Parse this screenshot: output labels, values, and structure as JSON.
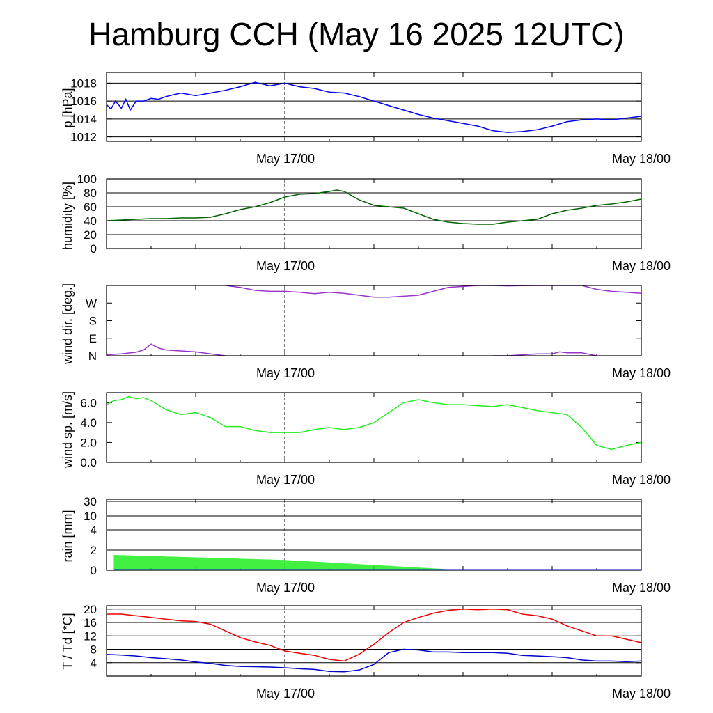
{
  "title": "Hamburg CCH (May 16 2025 12UTC)",
  "chart_data": [
    {
      "type": "line",
      "ylabel": "p [hPa]",
      "ylim": [
        1011.5,
        1019.2
      ],
      "yticks": [
        "1012",
        "1014",
        "1016",
        "1018"
      ],
      "ytick_values": [
        1012,
        1014,
        1016,
        1018
      ],
      "xticks": [
        "May 17/00",
        "May 18/00"
      ],
      "x_range_hours": [
        0,
        36
      ],
      "grid": "horizontal",
      "midnight_marker_hour": 12,
      "series": [
        {
          "color": "#0000ee",
          "x": [
            0,
            0.3,
            0.6,
            1,
            1.3,
            1.6,
            2,
            2.5,
            3,
            3.5,
            4,
            5,
            6,
            7,
            8,
            9,
            10,
            11,
            12,
            13,
            14,
            15,
            16,
            17,
            18,
            19,
            20,
            21,
            22,
            23,
            24,
            25,
            26,
            27,
            28,
            29,
            30,
            31,
            32,
            33,
            34,
            35,
            36
          ],
          "values": [
            1015.6,
            1015.1,
            1016,
            1015.2,
            1016.2,
            1015,
            1016,
            1016,
            1016.3,
            1016.2,
            1016.5,
            1016.9,
            1016.6,
            1016.9,
            1017.2,
            1017.6,
            1018.1,
            1017.7,
            1018,
            1017.6,
            1017.4,
            1017,
            1016.9,
            1016.5,
            1016,
            1015.5,
            1015,
            1014.5,
            1014.1,
            1013.8,
            1013.5,
            1013.2,
            1012.7,
            1012.5,
            1012.6,
            1012.8,
            1013.2,
            1013.7,
            1013.9,
            1014,
            1013.9,
            1014.1,
            1014.3
          ]
        }
      ]
    },
    {
      "type": "line",
      "ylabel": "humidity [%]",
      "ylim": [
        0,
        100
      ],
      "yticks": [
        "0",
        "20",
        "40",
        "60",
        "80",
        "100"
      ],
      "ytick_values": [
        0,
        20,
        40,
        60,
        80,
        100
      ],
      "xticks": [
        "May 17/00",
        "May 18/00"
      ],
      "x_range_hours": [
        0,
        36
      ],
      "grid": "horizontal",
      "midnight_marker_hour": 12,
      "series": [
        {
          "color": "#006400",
          "x": [
            0,
            1,
            2,
            3,
            4,
            5,
            6,
            7,
            8,
            9,
            10,
            11,
            12,
            13,
            14,
            15,
            15.5,
            16,
            17,
            18,
            19,
            20,
            21,
            22,
            23,
            24,
            25,
            26,
            27,
            28,
            29,
            30,
            31,
            32,
            33,
            34,
            35,
            36
          ],
          "values": [
            40,
            41,
            42,
            43,
            43,
            44,
            44,
            45,
            50,
            56,
            60,
            66,
            74,
            78,
            79,
            82,
            84,
            82,
            70,
            62,
            60,
            58,
            50,
            42,
            38,
            36,
            35,
            35,
            38,
            40,
            42,
            50,
            55,
            58,
            62,
            64,
            67,
            71
          ]
        }
      ]
    },
    {
      "type": "line",
      "ylabel": "wind dir. [deg.]",
      "ylim": [
        0,
        360
      ],
      "yticks": [
        "N",
        "E",
        "S",
        "W"
      ],
      "ytick_values": [
        0,
        90,
        180,
        270
      ],
      "xticks": [
        "May 17/00",
        "May 18/00"
      ],
      "x_range_hours": [
        0,
        36
      ],
      "grid": "none",
      "midnight_marker_hour": 12,
      "series": [
        {
          "color": "#9933cc",
          "x": [
            0,
            1,
            2,
            2.5,
            3,
            3.5,
            4,
            5,
            6,
            7,
            8
          ],
          "values": [
            5,
            10,
            18,
            30,
            60,
            40,
            30,
            25,
            20,
            10,
            0
          ]
        },
        {
          "color": "#9933cc",
          "x": [
            8,
            9,
            10,
            11,
            12,
            13,
            14,
            15,
            16,
            17,
            18,
            19,
            20,
            21,
            22,
            23,
            24,
            25,
            26,
            27,
            28,
            29,
            30,
            31,
            32,
            33,
            34,
            35,
            36
          ],
          "values": [
            360,
            350,
            335,
            330,
            330,
            325,
            318,
            325,
            320,
            310,
            300,
            300,
            305,
            310,
            330,
            350,
            355,
            360,
            360,
            358,
            359,
            360,
            360,
            360,
            360,
            340,
            330,
            325,
            320
          ]
        },
        {
          "color": "#9933cc",
          "x": [
            26,
            27,
            28,
            29,
            30,
            30.5,
            31,
            32,
            33
          ],
          "values": [
            0,
            0,
            5,
            10,
            10,
            20,
            15,
            15,
            0
          ]
        }
      ]
    },
    {
      "type": "line",
      "ylabel": "wind sp. [m/s]",
      "ylim": [
        0,
        7
      ],
      "yticks": [
        "0.0",
        "2.0",
        "4.0",
        "6.0"
      ],
      "ytick_values": [
        0,
        2,
        4,
        6
      ],
      "xticks": [
        "May 17/00",
        "May 18/00"
      ],
      "x_range_hours": [
        0,
        36
      ],
      "grid": "none",
      "midnight_marker_hour": 12,
      "series": [
        {
          "color": "#22ee22",
          "x": [
            0,
            0.5,
            1,
            1.5,
            2,
            2.5,
            3,
            4,
            5,
            6,
            7,
            8,
            9,
            10,
            11,
            12,
            13,
            14,
            15,
            16,
            17,
            18,
            19,
            20,
            21,
            22,
            23,
            24,
            25,
            26,
            27,
            28,
            29,
            30,
            31,
            32,
            33,
            34,
            35,
            36
          ],
          "values": [
            5.8,
            6.2,
            6.3,
            6.6,
            6.4,
            6.5,
            6.2,
            5.3,
            4.8,
            5.0,
            4.5,
            3.6,
            3.6,
            3.2,
            3.0,
            3.0,
            3.0,
            3.3,
            3.5,
            3.3,
            3.5,
            4.0,
            5.0,
            6.0,
            6.3,
            6.0,
            5.8,
            5.8,
            5.7,
            5.6,
            5.8,
            5.5,
            5.2,
            5.0,
            4.8,
            3.5,
            1.7,
            1.3,
            1.7,
            2.0
          ]
        }
      ]
    },
    {
      "type": "area",
      "ylabel": "rain [mm]",
      "scale": "nonlinear",
      "yticks": [
        "0",
        "2",
        "4",
        "10",
        "30"
      ],
      "ytick_values": [
        0,
        2,
        4,
        10,
        30
      ],
      "xticks": [
        "May 17/00",
        "May 18/00"
      ],
      "x_range_hours": [
        0,
        36
      ],
      "grid": "horizontal",
      "midnight_marker_hour": 12,
      "series": [
        {
          "color": "#22ee22",
          "x": [
            0.5,
            12,
            24,
            36
          ],
          "values": [
            1.5,
            1.0,
            0.0,
            0.0
          ]
        }
      ]
    },
    {
      "type": "line",
      "ylabel": "T / Td [*C]",
      "ylim": [
        0,
        21
      ],
      "yticks": [
        "4",
        "8",
        "12",
        "16",
        "20"
      ],
      "ytick_values": [
        4,
        8,
        12,
        16,
        20
      ],
      "xticks": [
        "May 17/00",
        "May 18/00"
      ],
      "x_range_hours": [
        0,
        36
      ],
      "grid": "horizontal",
      "midnight_marker_hour": 12,
      "series": [
        {
          "color": "#ee0000",
          "x": [
            0,
            1,
            2,
            3,
            4,
            5,
            6,
            7,
            8,
            9,
            10,
            11,
            12,
            13,
            14,
            15,
            16,
            17,
            18,
            19,
            20,
            21,
            22,
            23,
            24,
            25,
            26,
            27,
            28,
            29,
            30,
            31,
            32,
            33,
            34,
            35,
            36
          ],
          "values": [
            18.5,
            18.5,
            18,
            17.5,
            17,
            16.5,
            16.3,
            15.5,
            13.5,
            11.5,
            10.2,
            9.2,
            7.5,
            6.8,
            6.2,
            5.0,
            4.5,
            6.5,
            9.5,
            13,
            16,
            17.5,
            18.8,
            19.6,
            20,
            19.8,
            20,
            19.8,
            18.5,
            18,
            17,
            15,
            13.5,
            12,
            12,
            11,
            10
          ]
        },
        {
          "color": "#0000cc",
          "x": [
            0,
            1,
            2,
            3,
            4,
            5,
            6,
            7,
            8,
            9,
            10,
            11,
            12,
            13,
            14,
            15,
            16,
            17,
            18,
            19,
            20,
            21,
            22,
            23,
            24,
            25,
            26,
            27,
            28,
            29,
            30,
            31,
            32,
            33,
            34,
            35,
            36
          ],
          "values": [
            6.5,
            6.3,
            6,
            5.5,
            5.2,
            4.8,
            4.2,
            3.8,
            3.2,
            2.9,
            2.8,
            2.7,
            2.5,
            2.2,
            2.0,
            1.4,
            1.3,
            1.8,
            3.5,
            7.0,
            8.0,
            7.8,
            7.2,
            7.2,
            7.0,
            7.0,
            7.0,
            6.8,
            6.2,
            6.0,
            5.8,
            5.5,
            4.8,
            4.5,
            4.5,
            4.3,
            4.5
          ]
        }
      ]
    }
  ]
}
